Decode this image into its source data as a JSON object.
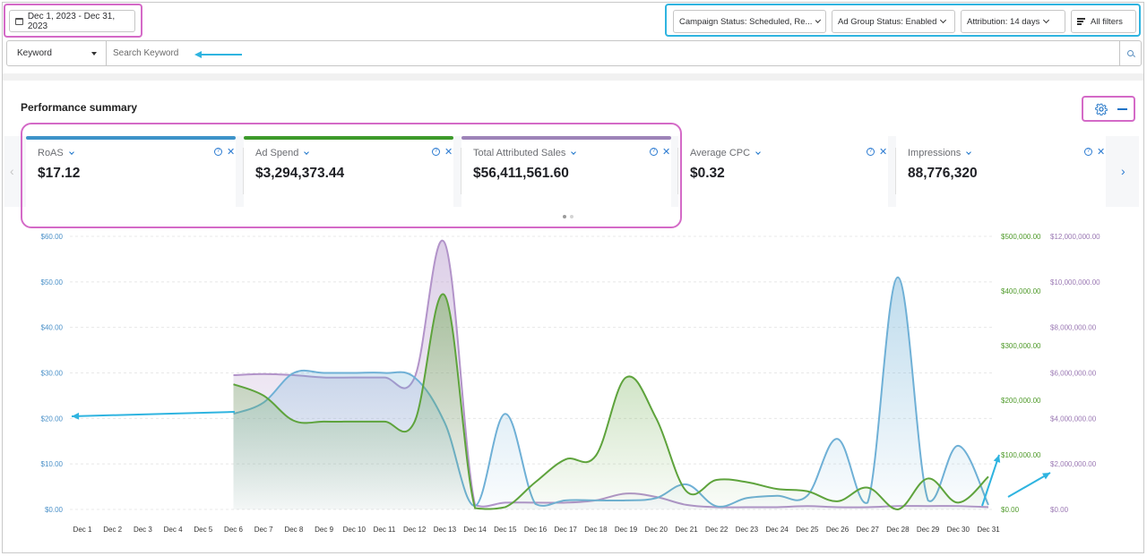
{
  "date_range": "Dec 1, 2023 - Dec 31, 2023",
  "filters": {
    "campaign_status": "Campaign Status: Scheduled, Re...",
    "ad_group_status": "Ad Group Status: Enabled",
    "attribution": "Attribution: 14 days",
    "all_filters": "All filters"
  },
  "keyword": {
    "select_value": "Keyword",
    "placeholder": "Search Keyword"
  },
  "panel": {
    "title": "Performance summary"
  },
  "cards": [
    {
      "label": "RoAS",
      "value": "$17.12",
      "color": "#3d93c9"
    },
    {
      "label": "Ad Spend",
      "value": "$3,294,373.44",
      "color": "#3d9a2b"
    },
    {
      "label": "Total Attributed Sales",
      "value": "$56,411,561.60",
      "color": "#9d83b8"
    },
    {
      "label": "Average CPC",
      "value": "$0.32",
      "color": ""
    },
    {
      "label": "Impressions",
      "value": "88,776,320",
      "color": ""
    }
  ],
  "colors": {
    "roas": "#6fb0d6",
    "ad_spend": "#5ea33c",
    "sales": "#b293c9",
    "accent_blue": "#1a73c9",
    "highlight_pink": "#d46ac7",
    "highlight_cyan": "#2fb4e0"
  },
  "chart_data": {
    "type": "area",
    "categories": [
      "Dec 1",
      "Dec 2",
      "Dec 3",
      "Dec 4",
      "Dec 5",
      "Dec 6",
      "Dec 7",
      "Dec 8",
      "Dec 9",
      "Dec 10",
      "Dec 11",
      "Dec 12",
      "Dec 13",
      "Dec 14",
      "Dec 15",
      "Dec 16",
      "Dec 17",
      "Dec 18",
      "Dec 19",
      "Dec 20",
      "Dec 21",
      "Dec 22",
      "Dec 23",
      "Dec 24",
      "Dec 25",
      "Dec 26",
      "Dec 27",
      "Dec 28",
      "Dec 29",
      "Dec 30",
      "Dec 31"
    ],
    "y_left_ticks": [
      "$0.00",
      "$10.00",
      "$20.00",
      "$30.00",
      "$40.00",
      "$50.00",
      "$60.00"
    ],
    "y_mid_ticks": [
      "$0.00",
      "$100,000.00",
      "$200,000.00",
      "$300,000.00",
      "$400,000.00",
      "$500,000.00"
    ],
    "y_right_ticks": [
      "$0.00",
      "$2,000,000.00",
      "$4,000,000.00",
      "$6,000,000.00",
      "$8,000,000.00",
      "$10,000,000.00",
      "$12,000,000.00"
    ],
    "series": [
      {
        "key": "roas",
        "axis": "left",
        "ylim": [
          0,
          60
        ],
        "values": [
          null,
          null,
          null,
          null,
          null,
          21,
          23.5,
          30,
          30,
          30,
          30,
          29,
          19,
          0.8,
          21,
          1.2,
          2,
          2,
          2,
          2.5,
          5.5,
          0.7,
          2.5,
          3,
          3,
          15.5,
          1.5,
          51,
          2,
          14,
          1
        ]
      },
      {
        "key": "ad_spend",
        "axis": "mid",
        "ylim": [
          0,
          500000
        ],
        "values": [
          null,
          null,
          null,
          null,
          null,
          275000,
          250000,
          195000,
          193000,
          193000,
          193000,
          193000,
          470000,
          3000,
          5000,
          60000,
          110000,
          118000,
          290000,
          200000,
          40000,
          65000,
          60000,
          45000,
          40000,
          18000,
          48000,
          0,
          68000,
          15000,
          72000
        ]
      },
      {
        "key": "sales",
        "axis": "right",
        "ylim": [
          0,
          12000000
        ],
        "values": [
          null,
          null,
          null,
          null,
          null,
          5900000,
          5950000,
          5900000,
          5800000,
          5800000,
          5800000,
          5800000,
          11700000,
          200000,
          300000,
          300000,
          300000,
          400000,
          700000,
          550000,
          200000,
          100000,
          100000,
          100000,
          150000,
          100000,
          100000,
          150000,
          150000,
          150000,
          100000
        ]
      }
    ]
  }
}
